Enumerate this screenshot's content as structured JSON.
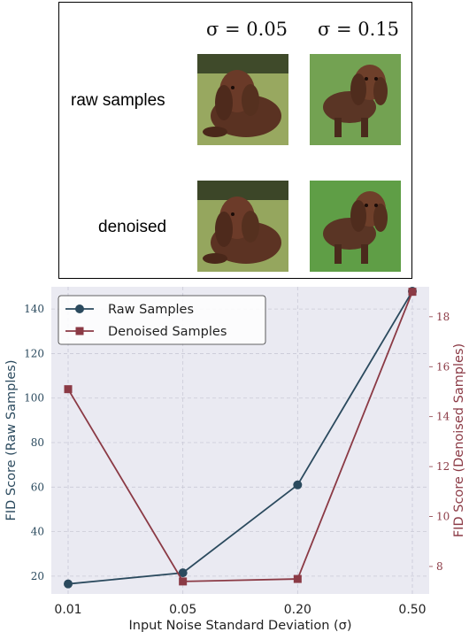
{
  "figure": {
    "column_labels": [
      "σ = 0.05",
      "σ = 0.15"
    ],
    "row_labels": [
      "raw samples",
      "denoised"
    ]
  },
  "colors": {
    "raw": "#2b4a5e",
    "denoised": "#8b3a45",
    "plot_bg": "#eaeaf2",
    "grid": "#c9c9d6"
  },
  "chart_data": {
    "type": "line",
    "categories": [
      "0.01",
      "0.05",
      "0.20",
      "0.50"
    ],
    "xlabel": "Input Noise Standard Deviation (σ)",
    "ylabel_left": "FID Score (Raw Samples)",
    "ylabel_right": "FID Score (Denoised Samples)",
    "ylim_left": [
      12,
      150
    ],
    "yticks_left": [
      20,
      40,
      60,
      80,
      100,
      120,
      140
    ],
    "ylim_right": [
      6.9,
      19.2
    ],
    "yticks_right": [
      8,
      10,
      12,
      14,
      16,
      18
    ],
    "grid": true,
    "legend_position": "top-left",
    "series": [
      {
        "name": "Raw Samples",
        "axis": "left",
        "marker": "circle",
        "values": [
          16.5,
          21.5,
          61,
          148
        ]
      },
      {
        "name": "Denoised Samples",
        "axis": "right",
        "marker": "square",
        "values": [
          15.1,
          7.4,
          7.5,
          19.0
        ]
      }
    ]
  }
}
